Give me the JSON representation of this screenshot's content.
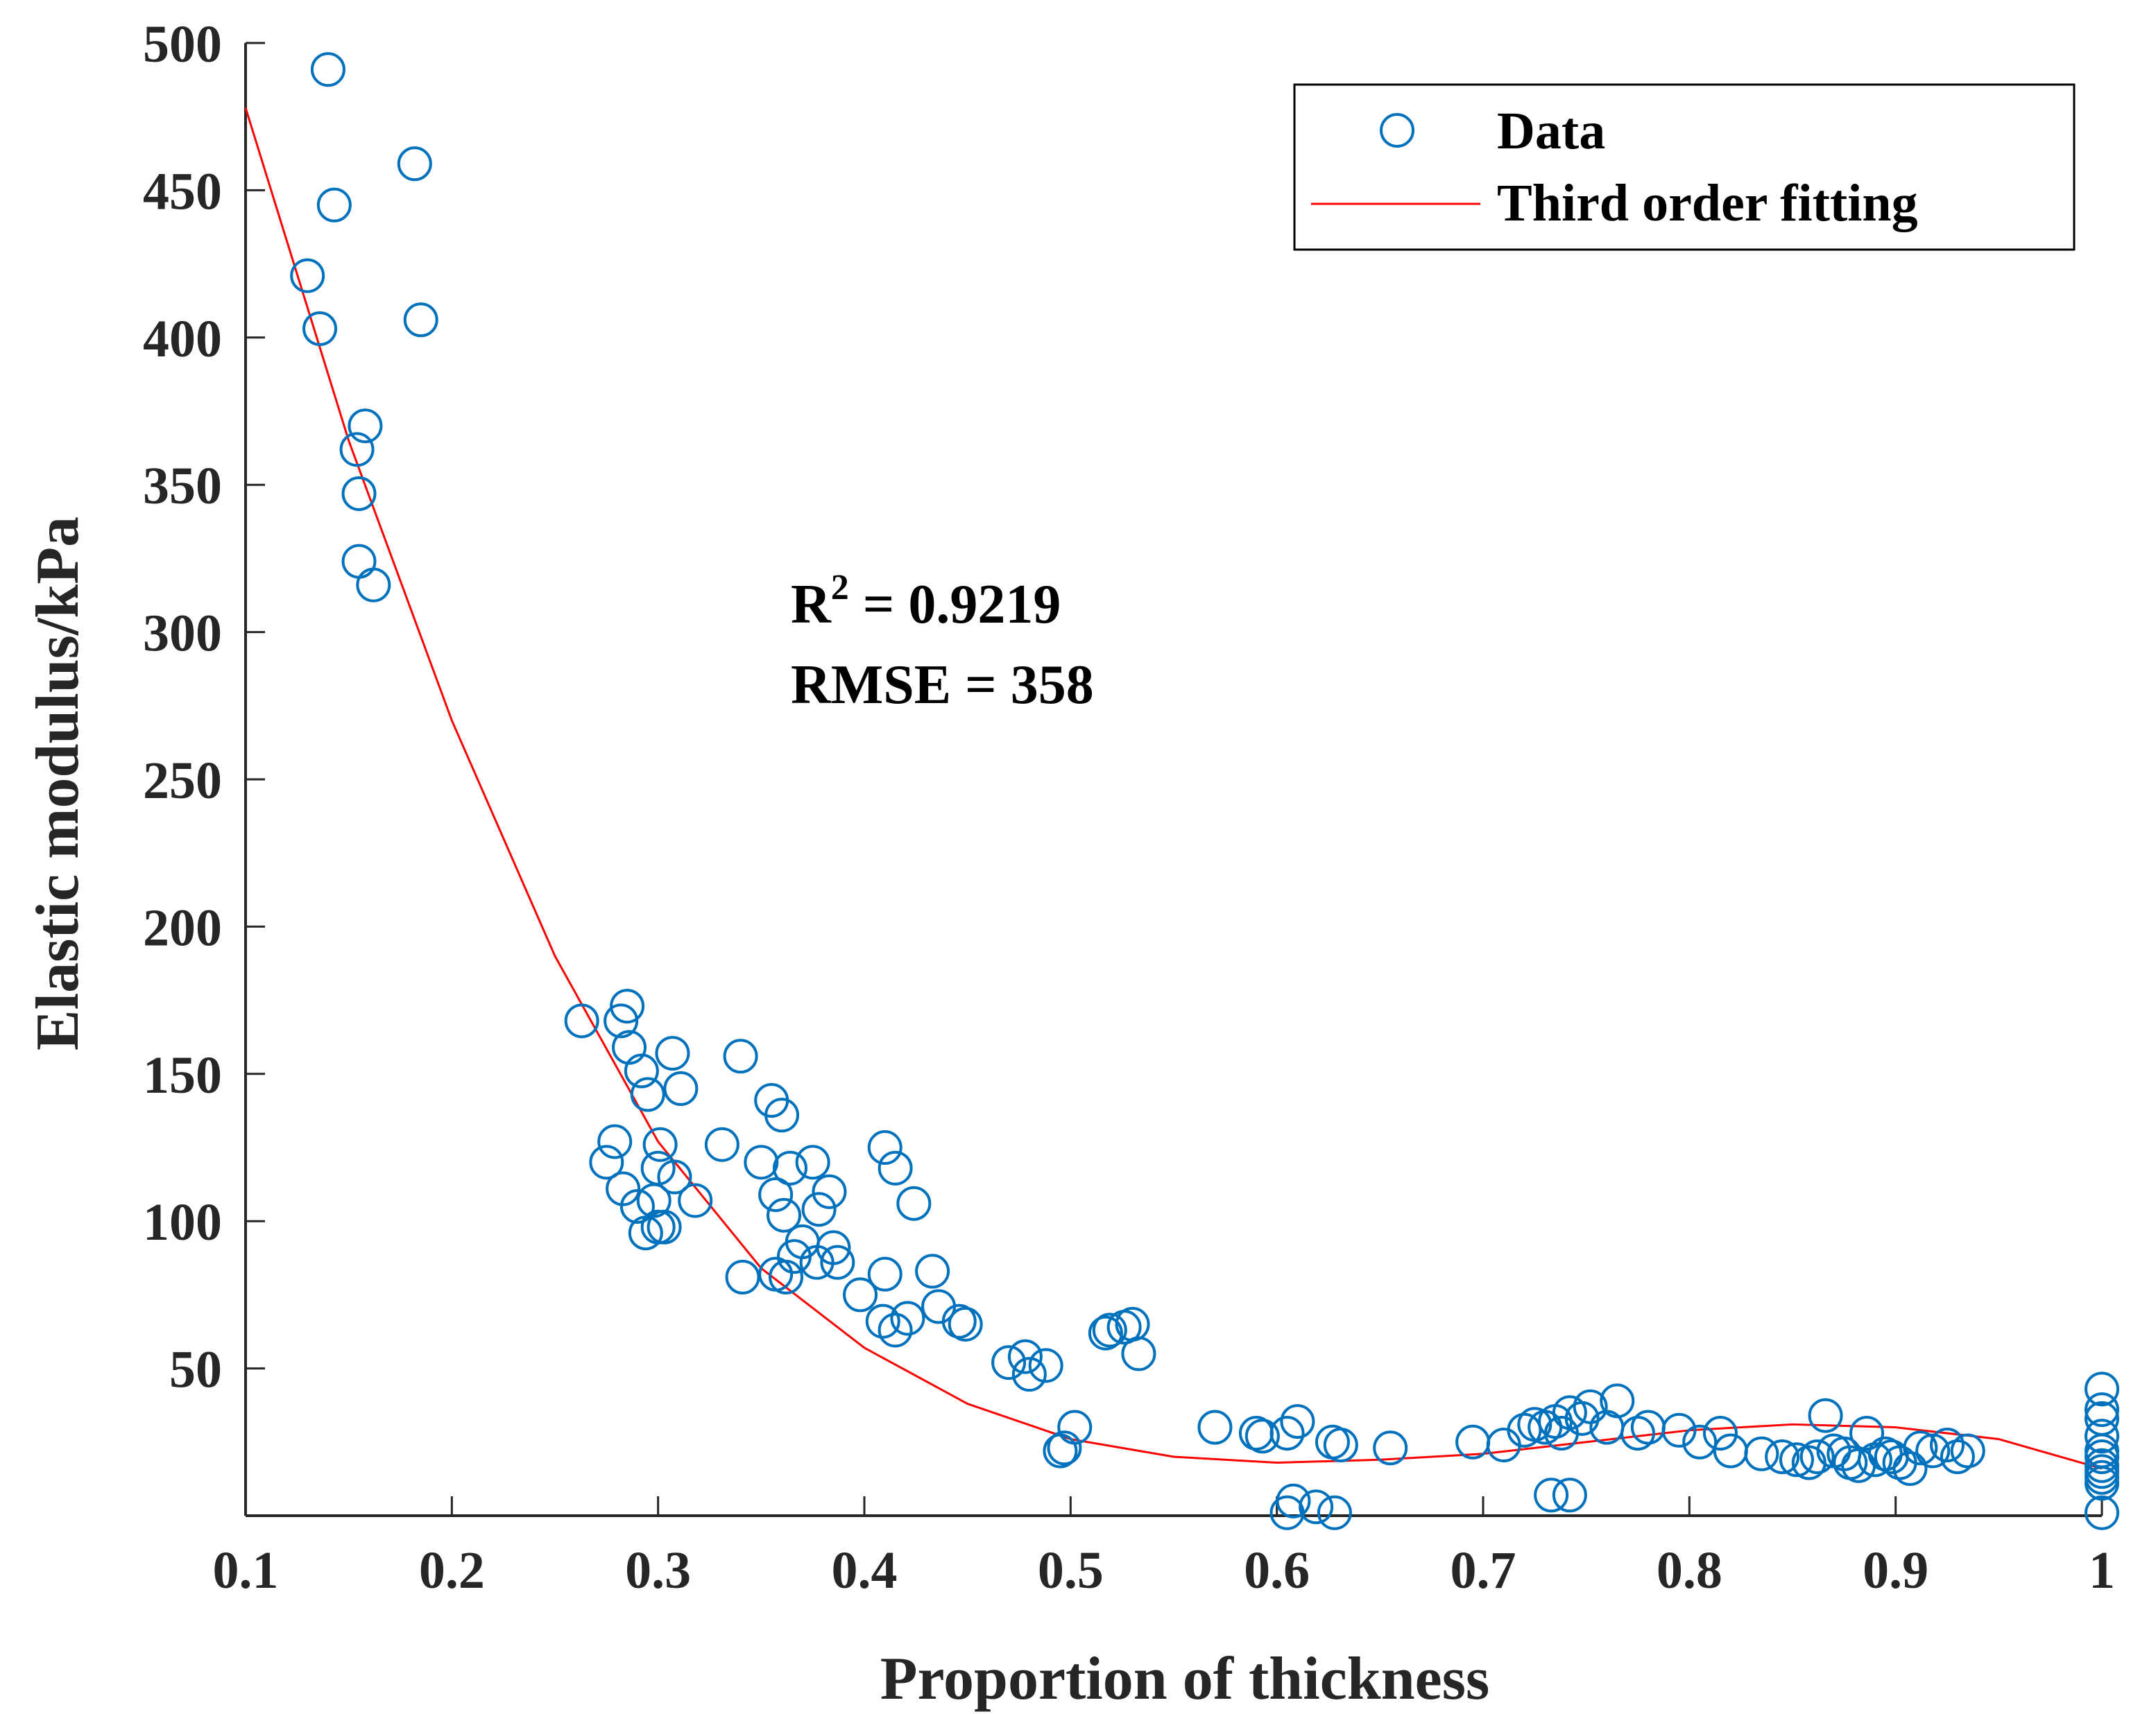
{
  "chart_data": {
    "type": "scatter",
    "xlabel": "Proportion of thickness",
    "ylabel": "Elastic modulus/kPa",
    "xlim": [
      0.1,
      1.0
    ],
    "ylim": [
      0,
      500
    ],
    "x_ticks": [
      0.1,
      0.2,
      0.3,
      0.4,
      0.5,
      0.6,
      0.7,
      0.8,
      0.9,
      1.0
    ],
    "x_tick_labels": [
      "0.1",
      "0.2",
      "0.3",
      "0.4",
      "0.5",
      "0.6",
      "0.7",
      "0.8",
      "0.9",
      "1"
    ],
    "y_ticks": [
      50,
      100,
      150,
      200,
      250,
      300,
      350,
      400,
      450,
      500
    ],
    "y_tick_labels": [
      "50",
      "100",
      "150",
      "200",
      "250",
      "300",
      "350",
      "400",
      "450",
      "500"
    ],
    "grid": false,
    "legend_position": "top-right",
    "legend": [
      {
        "label": "Data",
        "marker": "open-circle",
        "color": "#0072BD"
      },
      {
        "label": "Third order fitting",
        "marker": "line",
        "color": "#FF0000"
      }
    ],
    "annotation": {
      "r2_base": "R",
      "r2_sup": "2",
      "r2_value": " = 0.9219",
      "rmse": "RMSE = 358"
    },
    "series": [
      {
        "name": "Data",
        "kind": "scatter",
        "color": "#0072BD",
        "points": [
          [
            0.14,
            491
          ],
          [
            0.182,
            459
          ],
          [
            0.143,
            445
          ],
          [
            0.13,
            421
          ],
          [
            0.136,
            403
          ],
          [
            0.185,
            406
          ],
          [
            0.158,
            370
          ],
          [
            0.154,
            362
          ],
          [
            0.155,
            347
          ],
          [
            0.155,
            324
          ],
          [
            0.162,
            316
          ],
          [
            0.263,
            168
          ],
          [
            0.285,
            173
          ],
          [
            0.282,
            168
          ],
          [
            0.286,
            159
          ],
          [
            0.292,
            151
          ],
          [
            0.295,
            143
          ],
          [
            0.307,
            157
          ],
          [
            0.311,
            145
          ],
          [
            0.279,
            127
          ],
          [
            0.301,
            126
          ],
          [
            0.275,
            120
          ],
          [
            0.3,
            118
          ],
          [
            0.308,
            115
          ],
          [
            0.283,
            111
          ],
          [
            0.29,
            105
          ],
          [
            0.298,
            107
          ],
          [
            0.318,
            107
          ],
          [
            0.294,
            96
          ],
          [
            0.3,
            98
          ],
          [
            0.303,
            98
          ],
          [
            0.331,
            126
          ],
          [
            0.34,
            156
          ],
          [
            0.341,
            81
          ],
          [
            0.35,
            120
          ],
          [
            0.355,
            141
          ],
          [
            0.357,
            109
          ],
          [
            0.36,
            136
          ],
          [
            0.364,
            118
          ],
          [
            0.361,
            102
          ],
          [
            0.375,
            120
          ],
          [
            0.378,
            104
          ],
          [
            0.383,
            110
          ],
          [
            0.357,
            82
          ],
          [
            0.362,
            81
          ],
          [
            0.366,
            88
          ],
          [
            0.37,
            93
          ],
          [
            0.385,
            91
          ],
          [
            0.387,
            86
          ],
          [
            0.377,
            86
          ],
          [
            0.398,
            75
          ],
          [
            0.41,
            125
          ],
          [
            0.415,
            118
          ],
          [
            0.424,
            106
          ],
          [
            0.41,
            82
          ],
          [
            0.433,
            83
          ],
          [
            0.436,
            71
          ],
          [
            0.409,
            66
          ],
          [
            0.415,
            63
          ],
          [
            0.421,
            67
          ],
          [
            0.446,
            66
          ],
          [
            0.449,
            65
          ],
          [
            0.47,
            52
          ],
          [
            0.478,
            54
          ],
          [
            0.48,
            48
          ],
          [
            0.488,
            51
          ],
          [
            0.495,
            22
          ],
          [
            0.497,
            23
          ],
          [
            0.502,
            30
          ],
          [
            0.517,
            62
          ],
          [
            0.519,
            63
          ],
          [
            0.526,
            64
          ],
          [
            0.53,
            65
          ],
          [
            0.533,
            55
          ],
          [
            0.57,
            30
          ],
          [
            0.59,
            28
          ],
          [
            0.593,
            27
          ],
          [
            0.605,
            28
          ],
          [
            0.61,
            32
          ],
          [
            0.627,
            25
          ],
          [
            0.631,
            24
          ],
          [
            0.655,
            23
          ],
          [
            0.608,
            5
          ],
          [
            0.619,
            3
          ],
          [
            0.628,
            1
          ],
          [
            0.605,
            1
          ],
          [
            0.695,
            25
          ],
          [
            0.71,
            24
          ],
          [
            0.72,
            29
          ],
          [
            0.725,
            31
          ],
          [
            0.73,
            30
          ],
          [
            0.735,
            32
          ],
          [
            0.738,
            28
          ],
          [
            0.742,
            35
          ],
          [
            0.748,
            33
          ],
          [
            0.752,
            37
          ],
          [
            0.76,
            30
          ],
          [
            0.765,
            39
          ],
          [
            0.775,
            28
          ],
          [
            0.78,
            30
          ],
          [
            0.733,
            7
          ],
          [
            0.742,
            7
          ],
          [
            0.795,
            29
          ],
          [
            0.805,
            25
          ],
          [
            0.815,
            28
          ],
          [
            0.82,
            22
          ],
          [
            0.835,
            21
          ],
          [
            0.845,
            20
          ],
          [
            0.852,
            19
          ],
          [
            0.858,
            18
          ],
          [
            0.862,
            20
          ],
          [
            0.866,
            34
          ],
          [
            0.87,
            22
          ],
          [
            0.875,
            21
          ],
          [
            0.878,
            18
          ],
          [
            0.882,
            17
          ],
          [
            0.886,
            28
          ],
          [
            0.89,
            19
          ],
          [
            0.895,
            21
          ],
          [
            0.898,
            20
          ],
          [
            0.902,
            18
          ],
          [
            0.907,
            16
          ],
          [
            0.912,
            23
          ],
          [
            0.918,
            22
          ],
          [
            0.925,
            24
          ],
          [
            0.93,
            20
          ],
          [
            0.935,
            22
          ],
          [
            1.0,
            43
          ],
          [
            1.0,
            36
          ],
          [
            1.0,
            33
          ],
          [
            1.0,
            27
          ],
          [
            1.0,
            22
          ],
          [
            1.0,
            20
          ],
          [
            1.0,
            17
          ],
          [
            1.0,
            15
          ],
          [
            1.0,
            13
          ],
          [
            1.0,
            11
          ],
          [
            1.0,
            1
          ]
        ]
      },
      {
        "name": "Third order fitting",
        "kind": "line",
        "color": "#FF0000",
        "x": [
          0.1,
          0.15,
          0.2,
          0.25,
          0.3,
          0.35,
          0.4,
          0.45,
          0.5,
          0.55,
          0.6,
          0.65,
          0.7,
          0.75,
          0.8,
          0.85,
          0.9,
          0.95,
          1.0
        ],
        "y": [
          478,
          365,
          270,
          190,
          127,
          84,
          57,
          38,
          26,
          20,
          18,
          19,
          21,
          25,
          29,
          31,
          30,
          26,
          16
        ]
      }
    ]
  }
}
